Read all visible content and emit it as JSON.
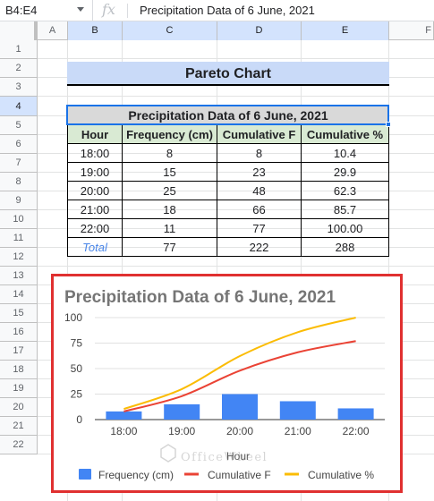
{
  "formula_bar": {
    "name_box": "B4:E4",
    "fx": "fx",
    "formula": "Precipitation Data of 6 June, 2021"
  },
  "columns": [
    "A",
    "B",
    "C",
    "D",
    "E",
    "F"
  ],
  "rows": [
    "1",
    "2",
    "3",
    "4",
    "5",
    "6",
    "7",
    "8",
    "9",
    "10",
    "11",
    "12",
    "13",
    "14",
    "15",
    "16",
    "17",
    "18",
    "19",
    "20",
    "21",
    "22"
  ],
  "sheet": {
    "title": "Pareto Chart",
    "table_caption": "Precipitation Data of 6 June, 2021",
    "headers": [
      "Hour",
      "Frequency (cm)",
      "Cumulative F",
      "Cumulative %"
    ],
    "rows": [
      [
        "18:00",
        "8",
        "8",
        "10.4"
      ],
      [
        "19:00",
        "15",
        "23",
        "29.9"
      ],
      [
        "20:00",
        "25",
        "48",
        "62.3"
      ],
      [
        "21:00",
        "18",
        "66",
        "85.7"
      ],
      [
        "22:00",
        "11",
        "77",
        "100.00"
      ]
    ],
    "total": [
      "Total",
      "77",
      "222",
      "288"
    ]
  },
  "chart_data": {
    "type": "bar",
    "title": "Precipitation Data of 6 June, 2021",
    "xlabel": "Hour",
    "ylabel": "",
    "categories": [
      "18:00",
      "19:00",
      "20:00",
      "21:00",
      "22:00"
    ],
    "ylim": [
      0,
      100
    ],
    "yticks": [
      "0",
      "25",
      "50",
      "75",
      "100"
    ],
    "series": [
      {
        "name": "Frequency (cm)",
        "kind": "bar",
        "values": [
          8,
          15,
          25,
          18,
          11
        ],
        "color": "#4285f4"
      },
      {
        "name": "Cumulative F",
        "kind": "line",
        "values": [
          8,
          23,
          48,
          66,
          77
        ],
        "color": "#ea4335"
      },
      {
        "name": "Cumulative %",
        "kind": "line",
        "values": [
          10.4,
          29.9,
          62.3,
          85.7,
          100
        ],
        "color": "#fbbc04"
      }
    ],
    "grid": true,
    "legend_position": "bottom"
  },
  "watermark": "OfficeWheel"
}
